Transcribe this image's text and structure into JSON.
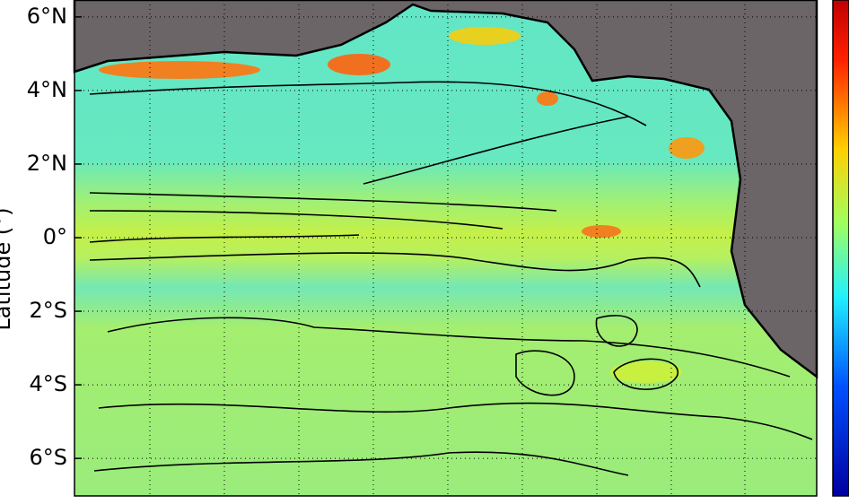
{
  "axes": {
    "ylabel": "Latitude (°)",
    "ylim": [
      -7.02,
      6.46
    ],
    "yticks": [
      {
        "value": 6,
        "label": "6°N"
      },
      {
        "value": 4,
        "label": "4°N"
      },
      {
        "value": 2,
        "label": "2°N"
      },
      {
        "value": 0,
        "label": "0°"
      },
      {
        "value": -2,
        "label": "2°S"
      },
      {
        "value": -4,
        "label": "4°S"
      },
      {
        "value": -6,
        "label": "6°S"
      }
    ]
  }
}
